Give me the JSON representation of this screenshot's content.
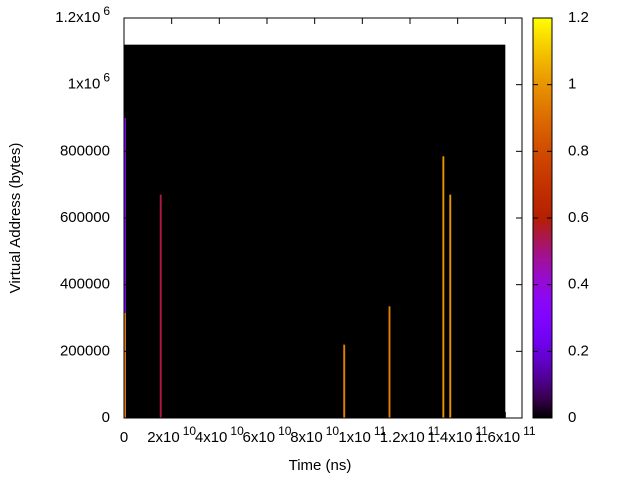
{
  "chart_data": {
    "type": "heatmap",
    "xlabel": "Time (ns)",
    "ylabel": "Virtual Address (bytes)",
    "xlim": [
      0,
      167000000000
    ],
    "ylim": [
      0,
      1200000
    ],
    "cblim": [
      0,
      1.2
    ],
    "xticks": [
      0,
      {
        "value": 20000000000,
        "label": "2x10",
        "exponent": "10"
      },
      {
        "value": 40000000000,
        "label": "4x10",
        "exponent": "10"
      },
      {
        "value": 60000000000,
        "label": "6x10",
        "exponent": "10"
      },
      {
        "value": 80000000000,
        "label": "8x10",
        "exponent": "10"
      },
      {
        "value": 100000000000,
        "label": "1x10",
        "exponent": "11"
      },
      {
        "value": 120000000000,
        "label": "1.2x10",
        "exponent": "11"
      },
      {
        "value": 140000000000,
        "label": "1.4x10",
        "exponent": "11"
      },
      {
        "value": 160000000000,
        "label": "1.6x10",
        "exponent": "11"
      }
    ],
    "yticks": [
      0,
      200000,
      400000,
      600000,
      800000,
      {
        "value": 1000000,
        "label": "1x10",
        "exponent": "6"
      },
      {
        "value": 1200000,
        "label": "1.2x10",
        "exponent": "6"
      }
    ],
    "cbticks": [
      0,
      0.2,
      0.4,
      0.6,
      0.8,
      1,
      1.2
    ],
    "cells": [
      {
        "x0": 0,
        "x1": 160000000000,
        "y0": 0,
        "y1": 1120000,
        "value": 0
      },
      {
        "x0": 0,
        "x1": 800000000,
        "y0": 0,
        "y1": 900000,
        "value": 0.35
      },
      {
        "x0": 0,
        "x1": 800000000,
        "y0": 0,
        "y1": 315000,
        "value": 0.95
      },
      {
        "x0": 15000000000,
        "x1": 15800000000,
        "y0": 0,
        "y1": 670000,
        "value": 0.55
      },
      {
        "x0": 92000000000,
        "x1": 92800000000,
        "y0": 0,
        "y1": 220000,
        "value": 0.95
      },
      {
        "x0": 111000000000,
        "x1": 111800000000,
        "y0": 0,
        "y1": 335000,
        "value": 0.95
      },
      {
        "x0": 133600000000,
        "x1": 134400000000,
        "y0": 0,
        "y1": 785000,
        "value": 1.0
      },
      {
        "x0": 136500000000,
        "x1": 137300000000,
        "y0": 0,
        "y1": 670000,
        "value": 1.0
      }
    ]
  }
}
